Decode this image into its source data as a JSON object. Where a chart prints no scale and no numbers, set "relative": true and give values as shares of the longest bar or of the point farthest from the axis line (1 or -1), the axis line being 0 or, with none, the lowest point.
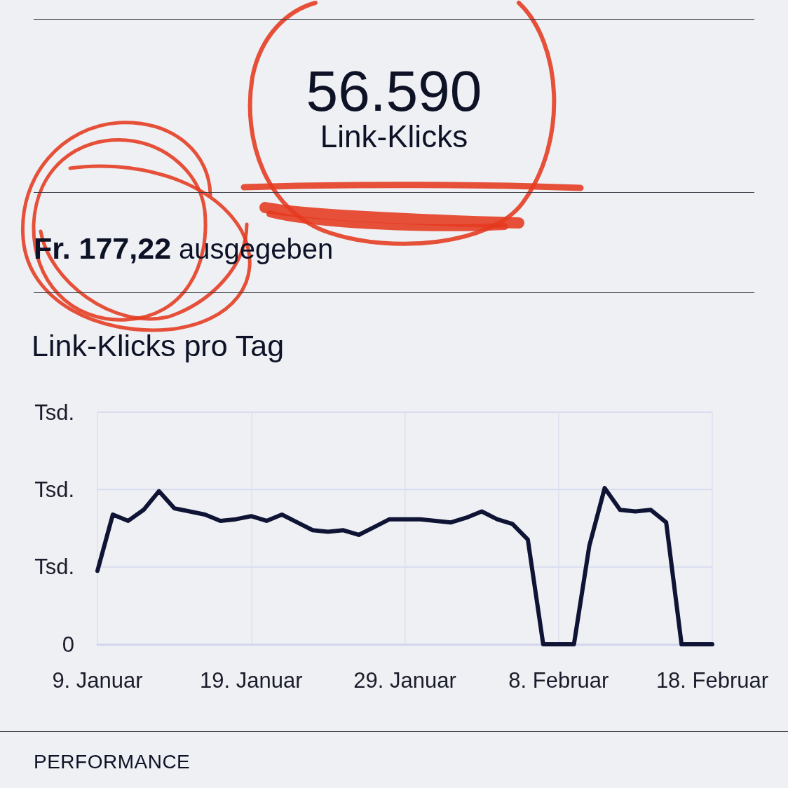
{
  "chart_data": [
    {
      "type": "other",
      "annotations": [
        "56.590",
        "Link-Klicks",
        "Fr. 177,22",
        "ausgegeben"
      ]
    },
    {
      "type": "line",
      "title": "Link-Klicks pro Tag",
      "relative": true,
      "color": "#0f1435",
      "marker": "none",
      "line_style": "solid",
      "grid": "x",
      "x": [
        "--01-09",
        "--01-10",
        "--01-11",
        "--01-12",
        "--01-13",
        "--01-14",
        "--01-15",
        "--01-16",
        "--01-17",
        "--01-18",
        "--01-19",
        "--01-20",
        "--01-21",
        "--01-22",
        "--01-23",
        "--01-24",
        "--01-25",
        "--01-26",
        "--01-27",
        "--01-28",
        "--01-29",
        "--01-30",
        "--01-31",
        "--02-01",
        "--02-02",
        "--02-03",
        "--02-04",
        "--02-05",
        "--02-06",
        "--02-07",
        "--02-08",
        "--02-09",
        "--02-10",
        "--02-11",
        "--02-12",
        "--02-13",
        "--02-14",
        "--02-15",
        "--02-16",
        "--02-17",
        "--02-18"
      ],
      "values": [
        0.47,
        0.83,
        0.79,
        0.86,
        0.98,
        0.87,
        0.85,
        0.83,
        0.79,
        0.8,
        0.82,
        0.79,
        0.83,
        0.78,
        0.73,
        0.72,
        0.73,
        0.7,
        0.75,
        0.8,
        0.8,
        0.8,
        0.79,
        0.78,
        0.81,
        0.85,
        0.8,
        0.77,
        0.67,
        0,
        0,
        0,
        0.63,
        1,
        0.86,
        0.85,
        0.86,
        0.78,
        0,
        0,
        0
      ],
      "xlim": [
        "--01-09",
        "--02-18"
      ],
      "xticks": [
        {
          "value": "--01-09",
          "label": "9. Januar"
        },
        {
          "value": "--01-19",
          "label": "19. Januar"
        },
        {
          "value": "--01-29",
          "label": "29. Januar"
        },
        {
          "value": "--02-08",
          "label": "8. Februar"
        },
        {
          "value": "--02-18",
          "label": "18. Februar"
        }
      ],
      "ref_lines": [
        {
          "axis": "y",
          "value": 0.495,
          "label": "Tsd.",
          "color": "#d9dcef"
        },
        {
          "axis": "y",
          "value": 0.99,
          "label": "Tsd.",
          "color": "#d9dcef"
        },
        {
          "axis": "y",
          "value": 1.485,
          "label": "Tsd.",
          "color": "#d9dcef"
        }
      ],
      "annotations": [
        "0"
      ]
    },
    {
      "type": "other",
      "title": "PERFORMANCE"
    }
  ]
}
